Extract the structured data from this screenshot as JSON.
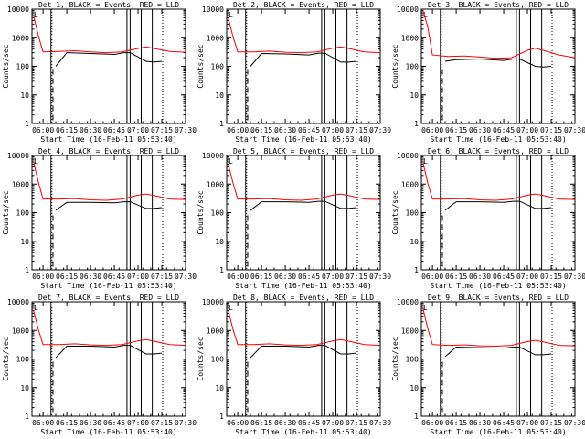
{
  "chart_data": [
    {
      "type": "line",
      "title": "Det 1, BLACK = Events, RED = LLD",
      "xlabel": "Start Time (16-Feb-11 05:53:40)",
      "ylabel": "Counts/sec",
      "yscale": "log",
      "ylim": [
        1,
        10000
      ],
      "xlim": [
        "05:53",
        "07:30"
      ],
      "x_ticks": [
        "06:00",
        "06:15",
        "06:30",
        "06:45",
        "07:00",
        "07:15",
        "07:30"
      ],
      "y_ticks": [
        "1",
        "10",
        "100",
        "1000",
        "10000"
      ],
      "legend_marker": "L",
      "grid": false,
      "series": [
        {
          "name": "Events",
          "color": "#000000",
          "x": [
            "06:08",
            "06:15",
            "06:30",
            "06:45",
            "06:51",
            "06:55",
            "07:05",
            "07:10",
            "07:15"
          ],
          "y": [
            100,
            300,
            280,
            260,
            300,
            300,
            150,
            140,
            150
          ]
        },
        {
          "name": "LLD",
          "color": "#ff0000",
          "x": [
            "05:54",
            "05:57",
            "06:00",
            "06:10",
            "06:20",
            "06:30",
            "06:40",
            "06:50",
            "07:00",
            "07:05",
            "07:10",
            "07:20",
            "07:30"
          ],
          "y": [
            6000,
            1200,
            320,
            330,
            350,
            320,
            300,
            320,
            420,
            480,
            420,
            330,
            310
          ]
        }
      ],
      "vlines_solid": [
        "06:05",
        "06:53",
        "06:55",
        "07:02",
        "07:09"
      ],
      "vlines_dotted": [
        "06:05",
        "07:15"
      ]
    },
    {
      "type": "line",
      "title": "Det 2, BLACK = Events, RED = LLD",
      "xlabel": "Start Time (16-Feb-11 05:53:40)",
      "ylabel": "Counts/sec",
      "yscale": "log",
      "ylim": [
        1,
        10000
      ],
      "xlim": [
        "05:53",
        "07:30"
      ],
      "x_ticks": [
        "06:00",
        "06:15",
        "06:30",
        "06:45",
        "07:00",
        "07:15",
        "07:30"
      ],
      "y_ticks": [
        "1",
        "10",
        "100",
        "1000",
        "10000"
      ],
      "legend_marker": "L",
      "grid": false,
      "series": [
        {
          "name": "Events",
          "color": "#000000",
          "x": [
            "06:08",
            "06:15",
            "06:30",
            "06:45",
            "06:51",
            "06:55",
            "07:05",
            "07:10",
            "07:15"
          ],
          "y": [
            100,
            280,
            270,
            250,
            290,
            290,
            140,
            140,
            150
          ]
        },
        {
          "name": "LLD",
          "color": "#ff0000",
          "x": [
            "05:54",
            "05:57",
            "06:00",
            "06:10",
            "06:20",
            "06:30",
            "06:40",
            "06:50",
            "07:00",
            "07:05",
            "07:10",
            "07:20",
            "07:30"
          ],
          "y": [
            5000,
            1100,
            320,
            320,
            340,
            310,
            300,
            320,
            430,
            480,
            420,
            320,
            300
          ]
        }
      ],
      "vlines_solid": [
        "06:05",
        "06:53",
        "06:55",
        "07:02",
        "07:09"
      ],
      "vlines_dotted": [
        "06:05",
        "07:15"
      ]
    },
    {
      "type": "line",
      "title": "Det 3, BLACK = Events, RED = LLD",
      "xlabel": "Start Time (16-Feb-11 05:53:40)",
      "ylabel": "Counts/sec",
      "yscale": "log",
      "ylim": [
        1,
        10000
      ],
      "xlim": [
        "05:53",
        "07:30"
      ],
      "x_ticks": [
        "06:00",
        "06:15",
        "06:30",
        "06:45",
        "07:00",
        "07:15",
        "07:30"
      ],
      "y_ticks": [
        "1",
        "10",
        "100",
        "1000",
        "10000"
      ],
      "legend_marker": "L",
      "grid": false,
      "series": [
        {
          "name": "Events",
          "color": "#000000",
          "x": [
            "06:08",
            "06:15",
            "06:30",
            "06:45",
            "06:51",
            "06:55",
            "07:05",
            "07:10",
            "07:15"
          ],
          "y": [
            150,
            170,
            180,
            160,
            180,
            180,
            100,
            95,
            100
          ]
        },
        {
          "name": "LLD",
          "color": "#ff0000",
          "x": [
            "05:54",
            "05:57",
            "06:00",
            "06:10",
            "06:20",
            "06:30",
            "06:40",
            "06:50",
            "07:00",
            "07:05",
            "07:10",
            "07:20",
            "07:30"
          ],
          "y": [
            9000,
            2500,
            250,
            220,
            230,
            210,
            190,
            200,
            360,
            430,
            360,
            250,
            200
          ]
        }
      ],
      "vlines_solid": [
        "06:05",
        "06:53",
        "06:55",
        "07:02",
        "07:09"
      ],
      "vlines_dotted": [
        "06:05",
        "07:15"
      ]
    },
    {
      "type": "line",
      "title": "Det 4, BLACK = Events, RED = LLD",
      "xlabel": "Start Time (16-Feb-11 05:53:40)",
      "ylabel": "Counts/sec",
      "yscale": "log",
      "ylim": [
        1,
        10000
      ],
      "xlim": [
        "05:53",
        "07:30"
      ],
      "x_ticks": [
        "06:00",
        "06:15",
        "06:30",
        "06:45",
        "07:00",
        "07:15",
        "07:30"
      ],
      "y_ticks": [
        "1",
        "10",
        "100",
        "1000",
        "10000"
      ],
      "legend_marker": "L",
      "grid": false,
      "series": [
        {
          "name": "Events",
          "color": "#000000",
          "x": [
            "06:08",
            "06:15",
            "06:30",
            "06:45",
            "06:51",
            "06:55",
            "07:05",
            "07:10",
            "07:15"
          ],
          "y": [
            120,
            230,
            230,
            220,
            240,
            240,
            140,
            140,
            150
          ]
        },
        {
          "name": "LLD",
          "color": "#ff0000",
          "x": [
            "05:54",
            "05:57",
            "06:00",
            "06:10",
            "06:20",
            "06:30",
            "06:40",
            "06:50",
            "07:00",
            "07:05",
            "07:10",
            "07:20",
            "07:30"
          ],
          "y": [
            6000,
            1200,
            300,
            300,
            310,
            280,
            270,
            300,
            410,
            450,
            400,
            300,
            290
          ]
        }
      ],
      "vlines_solid": [
        "06:05",
        "06:53",
        "06:55",
        "07:02",
        "07:09"
      ],
      "vlines_dotted": [
        "06:05",
        "07:15"
      ]
    },
    {
      "type": "line",
      "title": "Det 5, BLACK = Events, RED = LLD",
      "xlabel": "Start Time (16-Feb-11 05:53:40)",
      "ylabel": "Counts/sec",
      "yscale": "log",
      "ylim": [
        1,
        10000
      ],
      "xlim": [
        "05:53",
        "07:30"
      ],
      "x_ticks": [
        "06:00",
        "06:15",
        "06:30",
        "06:45",
        "07:00",
        "07:15",
        "07:30"
      ],
      "y_ticks": [
        "1",
        "10",
        "100",
        "1000",
        "10000"
      ],
      "legend_marker": "L",
      "grid": false,
      "series": [
        {
          "name": "Events",
          "color": "#000000",
          "x": [
            "06:08",
            "06:15",
            "06:30",
            "06:45",
            "06:51",
            "06:55",
            "07:05",
            "07:10",
            "07:15"
          ],
          "y": [
            120,
            240,
            240,
            230,
            250,
            250,
            140,
            140,
            150
          ]
        },
        {
          "name": "LLD",
          "color": "#ff0000",
          "x": [
            "05:54",
            "05:57",
            "06:00",
            "06:10",
            "06:20",
            "06:30",
            "06:40",
            "06:50",
            "07:00",
            "07:05",
            "07:10",
            "07:20",
            "07:30"
          ],
          "y": [
            5000,
            1100,
            300,
            300,
            310,
            280,
            270,
            300,
            410,
            450,
            400,
            300,
            290
          ]
        }
      ],
      "vlines_solid": [
        "06:05",
        "06:53",
        "06:55",
        "07:02",
        "07:09"
      ],
      "vlines_dotted": [
        "06:05",
        "07:15"
      ]
    },
    {
      "type": "line",
      "title": "Det 6, BLACK = Events, RED = LLD",
      "xlabel": "Start Time (16-Feb-11 05:53:40)",
      "ylabel": "Counts/sec",
      "yscale": "log",
      "ylim": [
        1,
        10000
      ],
      "xlim": [
        "05:53",
        "07:30"
      ],
      "x_ticks": [
        "06:00",
        "06:15",
        "06:30",
        "06:45",
        "07:00",
        "07:15",
        "07:30"
      ],
      "y_ticks": [
        "1",
        "10",
        "100",
        "1000",
        "10000"
      ],
      "legend_marker": "L",
      "grid": false,
      "series": [
        {
          "name": "Events",
          "color": "#000000",
          "x": [
            "06:08",
            "06:15",
            "06:30",
            "06:45",
            "06:51",
            "06:55",
            "07:05",
            "07:10",
            "07:15"
          ],
          "y": [
            120,
            240,
            240,
            230,
            250,
            250,
            140,
            140,
            150
          ]
        },
        {
          "name": "LLD",
          "color": "#ff0000",
          "x": [
            "05:54",
            "05:57",
            "06:00",
            "06:10",
            "06:20",
            "06:30",
            "06:40",
            "06:50",
            "07:00",
            "07:05",
            "07:10",
            "07:20",
            "07:30"
          ],
          "y": [
            6000,
            1100,
            300,
            300,
            310,
            280,
            270,
            300,
            410,
            450,
            400,
            300,
            290
          ]
        }
      ],
      "vlines_solid": [
        "06:05",
        "06:53",
        "06:55",
        "07:02",
        "07:09"
      ],
      "vlines_dotted": [
        "06:05",
        "07:15"
      ]
    },
    {
      "type": "line",
      "title": "Det 7, BLACK = Events, RED = LLD",
      "xlabel": "Start Time (16-Feb-11 05:53:40)",
      "ylabel": "Counts/sec",
      "yscale": "log",
      "ylim": [
        1,
        10000
      ],
      "xlim": [
        "05:53",
        "07:30"
      ],
      "x_ticks": [
        "06:00",
        "06:15",
        "06:30",
        "06:45",
        "07:00",
        "07:15",
        "07:30"
      ],
      "y_ticks": [
        "1",
        "10",
        "100",
        "1000",
        "10000"
      ],
      "legend_marker": "L",
      "grid": false,
      "series": [
        {
          "name": "Events",
          "color": "#000000",
          "x": [
            "06:08",
            "06:15",
            "06:30",
            "06:45",
            "06:51",
            "06:55",
            "07:05",
            "07:10",
            "07:15"
          ],
          "y": [
            110,
            280,
            280,
            260,
            300,
            300,
            150,
            150,
            160
          ]
        },
        {
          "name": "LLD",
          "color": "#ff0000",
          "x": [
            "05:54",
            "05:57",
            "06:00",
            "06:10",
            "06:20",
            "06:30",
            "06:40",
            "06:50",
            "07:00",
            "07:05",
            "07:10",
            "07:20",
            "07:30"
          ],
          "y": [
            5000,
            1100,
            320,
            320,
            340,
            310,
            300,
            320,
            430,
            480,
            420,
            320,
            300
          ]
        }
      ],
      "vlines_solid": [
        "06:05",
        "06:53",
        "06:55",
        "07:02",
        "07:09"
      ],
      "vlines_dotted": [
        "06:05",
        "07:15"
      ]
    },
    {
      "type": "line",
      "title": "Det 8, BLACK = Events, RED = LLD",
      "xlabel": "Start Time (16-Feb-11 05:53:40)",
      "ylabel": "Counts/sec",
      "yscale": "log",
      "ylim": [
        1,
        10000
      ],
      "xlim": [
        "05:53",
        "07:30"
      ],
      "x_ticks": [
        "06:00",
        "06:15",
        "06:30",
        "06:45",
        "07:00",
        "07:15",
        "07:30"
      ],
      "y_ticks": [
        "1",
        "10",
        "100",
        "1000",
        "10000"
      ],
      "legend_marker": "L",
      "grid": false,
      "series": [
        {
          "name": "Events",
          "color": "#000000",
          "x": [
            "06:08",
            "06:15",
            "06:30",
            "06:45",
            "06:51",
            "06:55",
            "07:05",
            "07:10",
            "07:15"
          ],
          "y": [
            110,
            280,
            280,
            260,
            300,
            300,
            150,
            150,
            160
          ]
        },
        {
          "name": "LLD",
          "color": "#ff0000",
          "x": [
            "05:54",
            "05:57",
            "06:00",
            "06:10",
            "06:20",
            "06:30",
            "06:40",
            "06:50",
            "07:00",
            "07:05",
            "07:10",
            "07:20",
            "07:30"
          ],
          "y": [
            5000,
            1100,
            320,
            320,
            340,
            310,
            300,
            320,
            430,
            480,
            420,
            320,
            300
          ]
        }
      ],
      "vlines_solid": [
        "06:05",
        "06:53",
        "06:55",
        "07:02",
        "07:09"
      ],
      "vlines_dotted": [
        "06:05",
        "07:15"
      ]
    },
    {
      "type": "line",
      "title": "Det 9, BLACK = Events, RED = LLD",
      "xlabel": "Start Time (16-Feb-11 05:53:40)",
      "ylabel": "Counts/sec",
      "yscale": "log",
      "ylim": [
        1,
        10000
      ],
      "xlim": [
        "05:53",
        "07:30"
      ],
      "x_ticks": [
        "06:00",
        "06:15",
        "06:30",
        "06:45",
        "07:00",
        "07:15",
        "07:30"
      ],
      "y_ticks": [
        "1",
        "10",
        "100",
        "1000",
        "10000"
      ],
      "legend_marker": "L",
      "grid": false,
      "series": [
        {
          "name": "Events",
          "color": "#000000",
          "x": [
            "06:08",
            "06:15",
            "06:30",
            "06:45",
            "06:51",
            "06:55",
            "07:05",
            "07:10",
            "07:15"
          ],
          "y": [
            120,
            260,
            250,
            240,
            260,
            260,
            140,
            140,
            150
          ]
        },
        {
          "name": "LLD",
          "color": "#ff0000",
          "x": [
            "05:54",
            "05:57",
            "06:00",
            "06:10",
            "06:20",
            "06:30",
            "06:40",
            "06:50",
            "07:00",
            "07:05",
            "07:10",
            "07:20",
            "07:30"
          ],
          "y": [
            6000,
            1200,
            320,
            300,
            310,
            290,
            280,
            300,
            410,
            450,
            400,
            300,
            290
          ]
        }
      ],
      "vlines_solid": [
        "06:05",
        "06:53",
        "06:55",
        "07:02",
        "07:09"
      ],
      "vlines_dotted": [
        "06:05",
        "07:15"
      ]
    }
  ]
}
